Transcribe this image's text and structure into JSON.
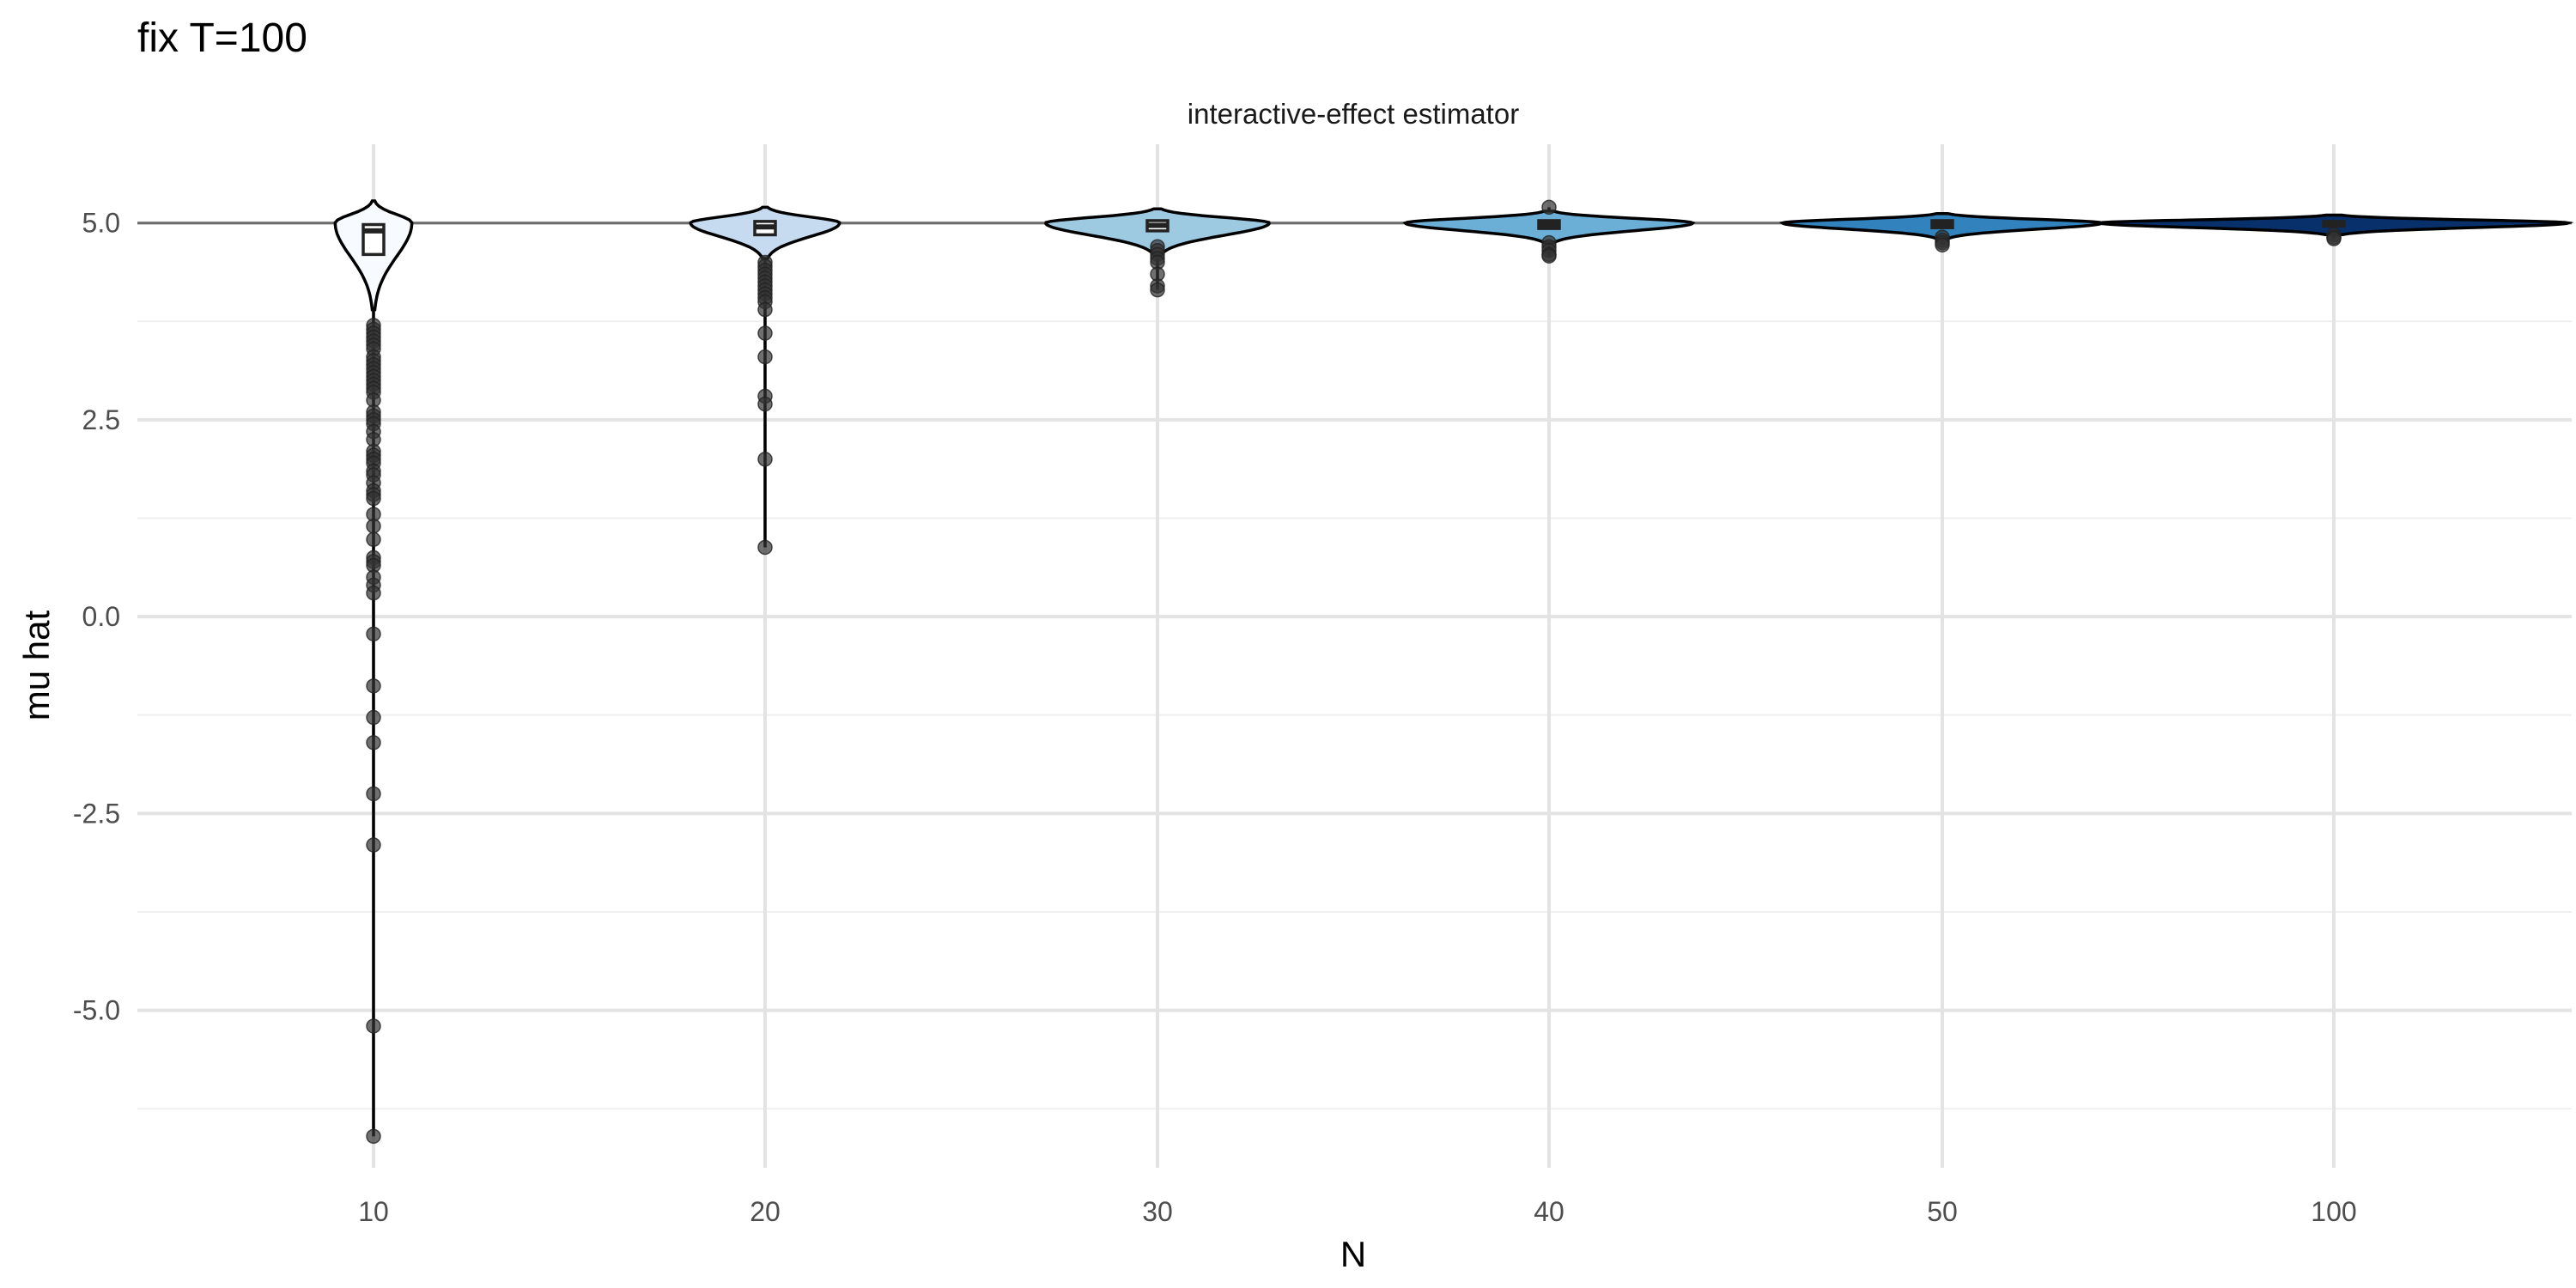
{
  "chart_data": {
    "type": "violin",
    "title": "fix T=100",
    "subtitle": "interactive-effect estimator",
    "xlabel": "N",
    "ylabel": "mu hat",
    "categories": [
      "10",
      "20",
      "30",
      "40",
      "50",
      "100"
    ],
    "ylim": [
      -7.0,
      6.0
    ],
    "yticks": [
      -5.0,
      -2.5,
      0.0,
      2.5,
      5.0
    ],
    "ytick_labels": [
      "-5.0",
      "-2.5",
      "0.0",
      "2.5",
      "5.0"
    ],
    "reference_line": 5.0,
    "grid": true,
    "groups": [
      {
        "N": "10",
        "fill": "#f7fbff",
        "box": {
          "q1": 4.6,
          "median": 4.9,
          "q3": 4.98
        },
        "whisker": {
          "low": 4.0,
          "high": 5.1
        },
        "violin": {
          "min": 3.9,
          "max": 5.28,
          "max_halfwidth": 0.72,
          "mode_y": 5.0
        },
        "outliers": [
          3.7,
          3.65,
          3.6,
          3.55,
          3.5,
          3.45,
          3.4,
          3.3,
          3.25,
          3.2,
          3.15,
          3.1,
          3.05,
          3.0,
          2.95,
          2.9,
          2.85,
          2.75,
          2.6,
          2.55,
          2.5,
          2.45,
          2.35,
          2.25,
          2.1,
          2.05,
          2.0,
          1.95,
          1.85,
          1.8,
          1.7,
          1.6,
          1.55,
          1.5,
          1.3,
          1.15,
          0.98,
          0.75,
          0.7,
          0.65,
          0.5,
          0.4,
          0.3,
          -0.22,
          -0.88,
          -1.28,
          -1.6,
          -2.25,
          -2.9,
          -5.2,
          -6.6
        ]
      },
      {
        "N": "20",
        "fill": "#c6dbef",
        "box": {
          "q1": 4.85,
          "median": 4.95,
          "q3": 5.02
        },
        "whisker": {
          "low": 4.6,
          "high": 5.12
        },
        "violin": {
          "min": 4.55,
          "max": 5.2,
          "max_halfwidth": 1.4,
          "mode_y": 5.0
        },
        "outliers": [
          4.5,
          4.45,
          4.4,
          4.35,
          4.3,
          4.25,
          4.2,
          4.15,
          4.1,
          4.05,
          4.0,
          3.9,
          3.6,
          3.3,
          2.8,
          2.7,
          2.0,
          0.88
        ]
      },
      {
        "N": "30",
        "fill": "#9ecae1",
        "box": {
          "q1": 4.9,
          "median": 4.97,
          "q3": 5.03
        },
        "whisker": {
          "low": 4.75,
          "high": 5.1
        },
        "violin": {
          "min": 4.6,
          "max": 5.18,
          "max_halfwidth": 2.1,
          "mode_y": 5.0
        },
        "outliers": [
          4.7,
          4.65,
          4.6,
          4.55,
          4.5,
          4.35,
          4.2,
          4.15
        ]
      },
      {
        "N": "40",
        "fill": "#6baed6",
        "box": {
          "q1": 4.93,
          "median": 4.98,
          "q3": 5.03
        },
        "whisker": {
          "low": 4.82,
          "high": 5.1
        },
        "violin": {
          "min": 4.75,
          "max": 5.15,
          "max_halfwidth": 2.7,
          "mode_y": 5.0
        },
        "outliers": [
          5.2,
          4.75,
          4.7,
          4.65,
          4.6,
          4.58
        ]
      },
      {
        "N": "50",
        "fill": "#3182bd",
        "box": {
          "q1": 4.94,
          "median": 4.99,
          "q3": 5.03
        },
        "whisker": {
          "low": 4.85,
          "high": 5.09
        },
        "violin": {
          "min": 4.8,
          "max": 5.12,
          "max_halfwidth": 3.0,
          "mode_y": 5.0
        },
        "outliers": [
          4.82,
          4.78,
          4.75,
          4.72
        ]
      },
      {
        "N": "100",
        "fill": "#08306b",
        "box": {
          "q1": 4.96,
          "median": 4.99,
          "q3": 5.02
        },
        "whisker": {
          "low": 4.9,
          "high": 5.07
        },
        "violin": {
          "min": 4.85,
          "max": 5.1,
          "max_halfwidth": 4.4,
          "mode_y": 5.0
        },
        "outliers": [
          4.85,
          4.82,
          4.8
        ]
      }
    ]
  }
}
